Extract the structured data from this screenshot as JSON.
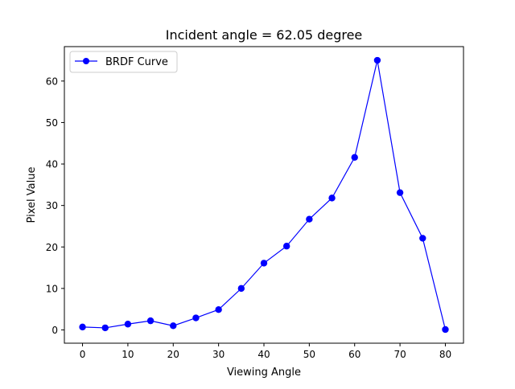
{
  "chart_data": {
    "type": "line",
    "title": "Incident angle = 62.05 degree",
    "xlabel": "Viewing Angle",
    "ylabel": "Pixel Value",
    "xlim": [
      -4,
      84
    ],
    "ylim": [
      -3.2,
      68.3
    ],
    "xticks": [
      0,
      10,
      20,
      30,
      40,
      50,
      60,
      70,
      80
    ],
    "yticks": [
      0,
      10,
      20,
      30,
      40,
      50,
      60
    ],
    "grid": false,
    "legend_position": "upper-left",
    "series": [
      {
        "name": "BRDF Curve",
        "color": "#0000ff",
        "marker": "circle",
        "x": [
          0,
          5,
          10,
          15,
          20,
          25,
          30,
          35,
          40,
          45,
          50,
          55,
          60,
          65,
          70,
          75,
          80
        ],
        "y": [
          0.7,
          0.5,
          1.4,
          2.2,
          1.0,
          2.9,
          4.9,
          10.0,
          16.1,
          20.2,
          26.7,
          31.8,
          41.6,
          65.0,
          33.1,
          22.1,
          0.1
        ]
      }
    ]
  }
}
